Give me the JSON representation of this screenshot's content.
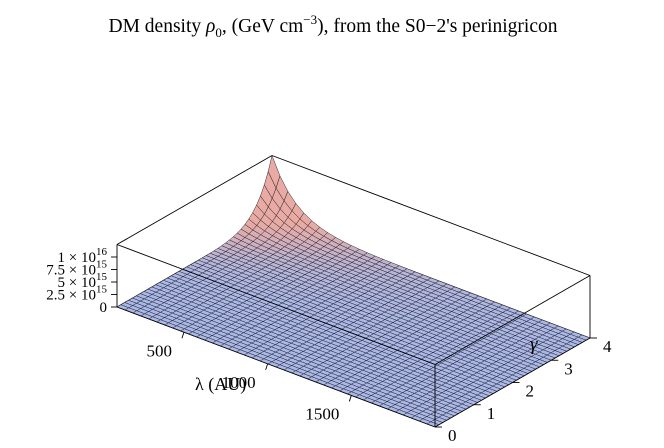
{
  "chart_data": {
    "type": "surface3d",
    "title": {
      "prefix": "DM density ",
      "symbol": "ρ",
      "symbol_sub": "0",
      "middle": ", (GeV cm",
      "exponent": "−3",
      "suffix": "), from the S0−2's perinigricon"
    },
    "x_axis": {
      "label": "λ (AU)",
      "range": [
        100,
        2000
      ],
      "ticks": [
        "500",
        "1000",
        "1500"
      ],
      "tick_values": [
        500,
        1000,
        1500
      ]
    },
    "y_axis": {
      "label": "γ",
      "range": [
        0,
        4
      ],
      "ticks": [
        "0",
        "1",
        "2",
        "3",
        "4"
      ],
      "tick_values": [
        0,
        1,
        2,
        3,
        4
      ]
    },
    "z_axis": {
      "range": [
        0,
        1e+16
      ],
      "ticks": [
        {
          "value": 0,
          "mantissa": "0",
          "times": "",
          "base": "",
          "exp": ""
        },
        {
          "value": 2500000000000000.0,
          "mantissa": "2.5",
          "times": "×",
          "base": "10",
          "exp": "15"
        },
        {
          "value": 5000000000000000.0,
          "mantissa": "5",
          "times": "×",
          "base": "10",
          "exp": "15"
        },
        {
          "value": 7500000000000000.0,
          "mantissa": "7.5",
          "times": "×",
          "base": "10",
          "exp": "15"
        },
        {
          "value": 1e+16,
          "mantissa": "1",
          "times": "×",
          "base": "10",
          "exp": "16"
        }
      ]
    },
    "surface": {
      "x_samples": 40,
      "y_samples": 40,
      "low_color": "#aab8e8",
      "high_color": "#e8aaa2"
    },
    "grid": false,
    "box": true
  }
}
